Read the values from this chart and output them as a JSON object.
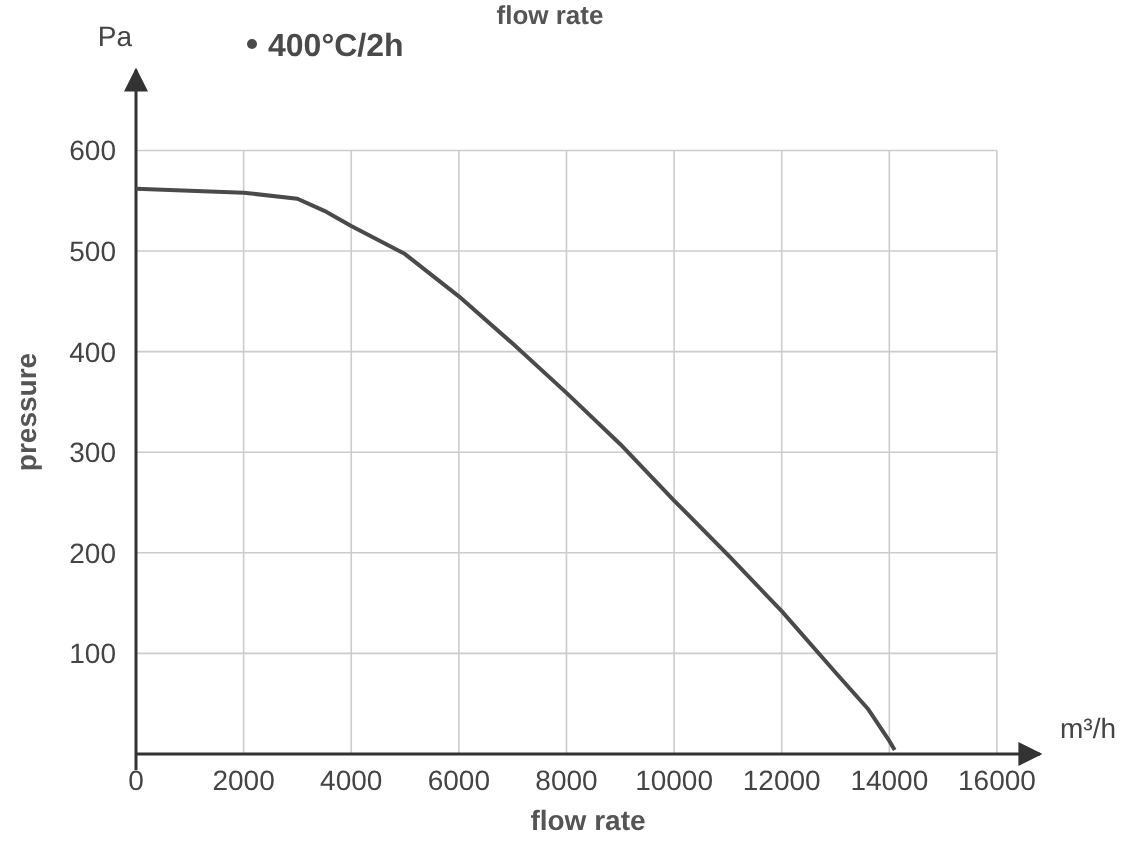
{
  "chart_data": {
    "type": "line",
    "title": "flow rate",
    "xlabel": "flow rate",
    "ylabel": "pressure",
    "annotations": [
      "Pa",
      "m³/h"
    ],
    "x": [
      0,
      1000,
      2000,
      3000,
      3500,
      4000,
      5000,
      6000,
      7000,
      8000,
      9000,
      10000,
      11000,
      12000,
      13000,
      13600,
      14000,
      14100
    ],
    "series": [
      {
        "name": "400°C/2h",
        "color": "#4a4a4a",
        "values": [
          562,
          560,
          558,
          552,
          540,
          525,
          497,
          455,
          408,
          359,
          308,
          252,
          198,
          142,
          81,
          45,
          13,
          4
        ]
      }
    ],
    "xlim": [
      0,
      16800
    ],
    "ylim": [
      0,
      680
    ],
    "xticks": [
      0,
      2000,
      4000,
      6000,
      8000,
      10000,
      12000,
      14000,
      16000
    ],
    "yticks": [
      100,
      200,
      300,
      400,
      500,
      600
    ],
    "grid": true,
    "legend": "top left",
    "line_style": "solid"
  }
}
